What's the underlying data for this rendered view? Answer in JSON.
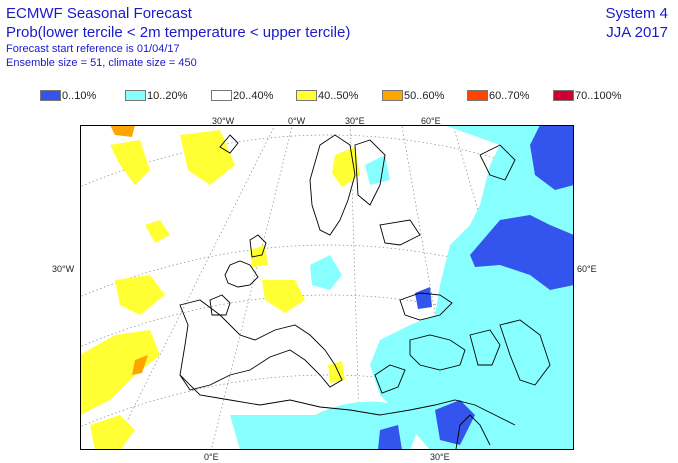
{
  "header": {
    "title": "ECMWF Seasonal Forecast",
    "subtitle": "Prob(lower tercile < 2m temperature < upper tercile)",
    "forecast_ref": "Forecast start reference is 01/04/17",
    "ensemble": "Ensemble size = 51, climate size = 450",
    "system": "System 4",
    "season": "JJA 2017"
  },
  "legend": [
    {
      "label": "0..10%",
      "color": "#3355ee"
    },
    {
      "label": "10..20%",
      "color": "#88ffff"
    },
    {
      "label": "20..40%",
      "color": "#ffffff"
    },
    {
      "label": "40..50%",
      "color": "#ffff33"
    },
    {
      "label": "50..60%",
      "color": "#ffa500"
    },
    {
      "label": "60..70%",
      "color": "#ff4400"
    },
    {
      "label": "70..100%",
      "color": "#cc0033"
    }
  ],
  "map": {
    "top_labels": [
      "30°W",
      "0°W",
      "30°E",
      "60°E"
    ],
    "left_label": "30°W",
    "right_label": "60°E",
    "bottom_labels": [
      "0°E",
      "30°E"
    ]
  }
}
